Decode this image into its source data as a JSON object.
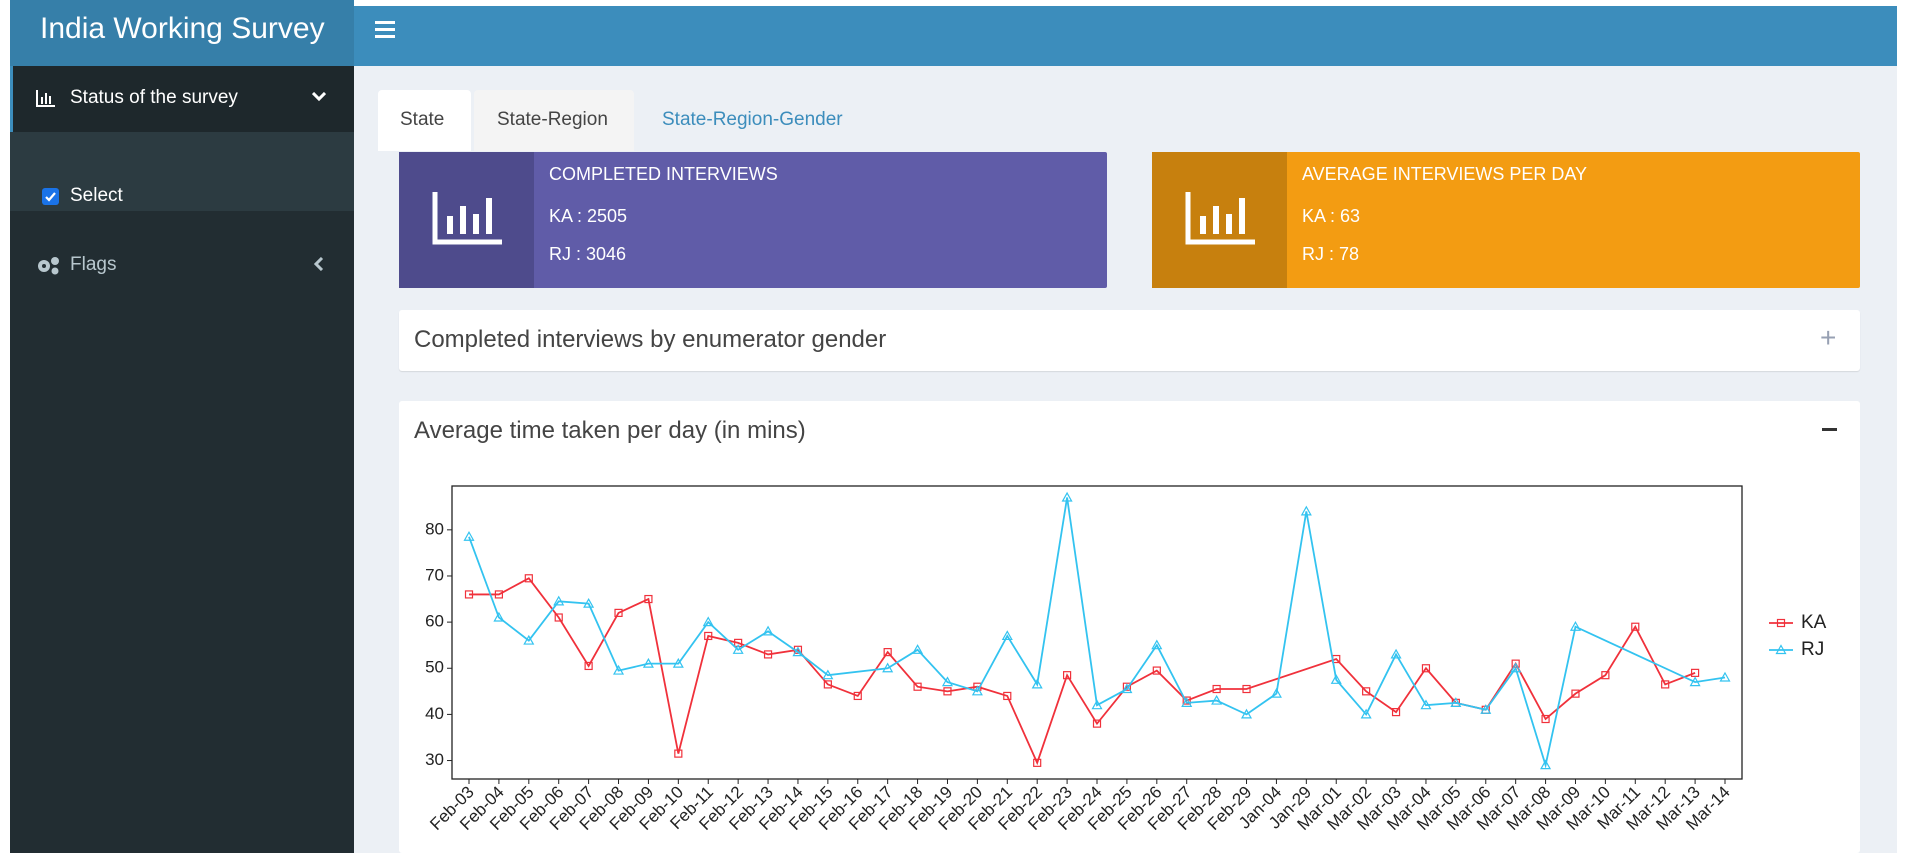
{
  "header": {
    "title": "India Working Survey"
  },
  "sidebar": {
    "items": [
      "Status of the survey",
      "Flags"
    ],
    "checkbox": "Select"
  },
  "tabs": [
    "State",
    "State-Region",
    "State-Region-Gender"
  ],
  "info_boxes": [
    {
      "title": "COMPLETED INTERVIEWS",
      "lines": [
        "KA : 2505",
        "RJ : 3046"
      ]
    },
    {
      "title": "AVERAGE INTERVIEWS PER DAY",
      "lines": [
        "KA : 63",
        "RJ : 78"
      ]
    }
  ],
  "boxes": [
    "Completed interviews by enumerator gender"
  ],
  "chart_data": {
    "type": "line",
    "title": "Average time taken per day (in mins)",
    "categories": [
      "Feb-03",
      "Feb-04",
      "Feb-05",
      "Feb-06",
      "Feb-07",
      "Feb-08",
      "Feb-09",
      "Feb-10",
      "Feb-11",
      "Feb-12",
      "Feb-13",
      "Feb-14",
      "Feb-15",
      "Feb-16",
      "Feb-17",
      "Feb-18",
      "Feb-19",
      "Feb-20",
      "Feb-21",
      "Feb-22",
      "Feb-23",
      "Feb-24",
      "Feb-25",
      "Feb-26",
      "Feb-27",
      "Feb-28",
      "Feb-29",
      "Jan-04",
      "Jan-29",
      "Mar-01",
      "Mar-02",
      "Mar-03",
      "Mar-04",
      "Mar-05",
      "Mar-06",
      "Mar-07",
      "Mar-08",
      "Mar-09",
      "Mar-10",
      "Mar-11",
      "Mar-12",
      "Mar-13",
      "Mar-14"
    ],
    "series": [
      {
        "name": "KA",
        "color": "#f0313b",
        "marker": "square",
        "x": [
          "Feb-03",
          "Feb-04",
          "Feb-05",
          "Feb-06",
          "Feb-07",
          "Feb-08",
          "Feb-09",
          "Feb-10",
          "Feb-11",
          "Feb-12",
          "Feb-13",
          "Feb-14",
          "Feb-15",
          "Feb-16",
          "Feb-17",
          "Feb-18",
          "Feb-19",
          "Feb-20",
          "Feb-21",
          "Feb-22",
          "Feb-23",
          "Feb-24",
          "Feb-25",
          "Feb-26",
          "Feb-27",
          "Feb-28",
          "Feb-29",
          "Mar-01",
          "Mar-02",
          "Mar-03",
          "Mar-04",
          "Mar-05",
          "Mar-06",
          "Mar-07",
          "Mar-08",
          "Mar-09",
          "Mar-10",
          "Mar-11",
          "Mar-12",
          "Mar-13"
        ],
        "values": [
          66,
          66,
          69.5,
          61,
          50.5,
          62,
          65,
          31.5,
          57,
          55.5,
          53,
          54,
          46.5,
          44,
          53.5,
          46,
          45,
          46,
          44,
          29.5,
          48.5,
          38,
          46,
          49.5,
          43,
          45.5,
          45.5,
          52,
          45,
          40.5,
          50,
          42.5,
          41,
          51,
          39,
          44.5,
          48.5,
          59,
          46.5,
          49
        ]
      },
      {
        "name": "RJ",
        "color": "#33c3f0",
        "marker": "triangle",
        "x": [
          "Feb-03",
          "Feb-04",
          "Feb-05",
          "Feb-06",
          "Feb-07",
          "Feb-08",
          "Feb-09",
          "Feb-10",
          "Feb-11",
          "Feb-12",
          "Feb-13",
          "Feb-14",
          "Feb-15",
          "Feb-17",
          "Feb-18",
          "Feb-19",
          "Feb-20",
          "Feb-21",
          "Feb-22",
          "Feb-23",
          "Feb-24",
          "Feb-25",
          "Feb-26",
          "Feb-27",
          "Feb-28",
          "Feb-29",
          "Jan-04",
          "Jan-29",
          "Mar-01",
          "Mar-02",
          "Mar-03",
          "Mar-04",
          "Mar-05",
          "Mar-06",
          "Mar-07",
          "Mar-08",
          "Mar-09",
          "Mar-13",
          "Mar-14"
        ],
        "values": [
          78.5,
          61,
          56,
          64.5,
          64,
          49.5,
          51,
          51,
          60,
          54,
          58,
          53.5,
          48.5,
          50,
          54,
          47,
          45,
          57,
          46.5,
          87,
          42,
          45.5,
          55,
          42.5,
          43,
          40,
          44.5,
          84,
          47.5,
          40,
          53,
          42,
          42.5,
          41,
          50,
          29,
          59,
          47,
          48
        ]
      }
    ],
    "ylim": [
      26,
      89.5
    ],
    "yticks": [
      30,
      40,
      50,
      60,
      70,
      80
    ],
    "grid": false,
    "legend": "right"
  }
}
